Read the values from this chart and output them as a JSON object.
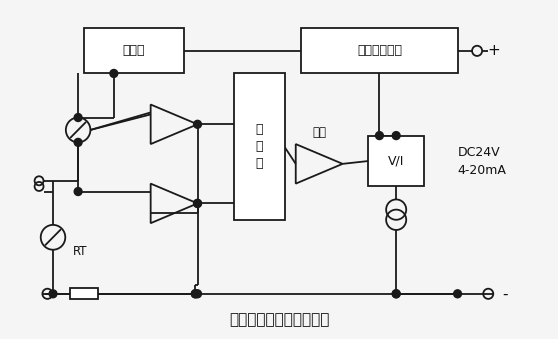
{
  "title": "热电阻温度变送器原理图",
  "title_fontsize": 11,
  "bg_color": "#f5f5f5",
  "line_color": "#1a1a1a",
  "text_color": "#111111",
  "label_jiyuanyuan": "基准源",
  "label_fanjiebaohu": "反接限流保护",
  "label_xianxinghua": "线\n性\n化",
  "label_fangda": "放大",
  "label_vi": "V/I",
  "label_RT": "RT",
  "label_dc": "DC24V\n4-20mA",
  "label_plus": "+",
  "label_minus": "-",
  "fig_width": 5.58,
  "fig_height": 3.39,
  "dpi": 100
}
